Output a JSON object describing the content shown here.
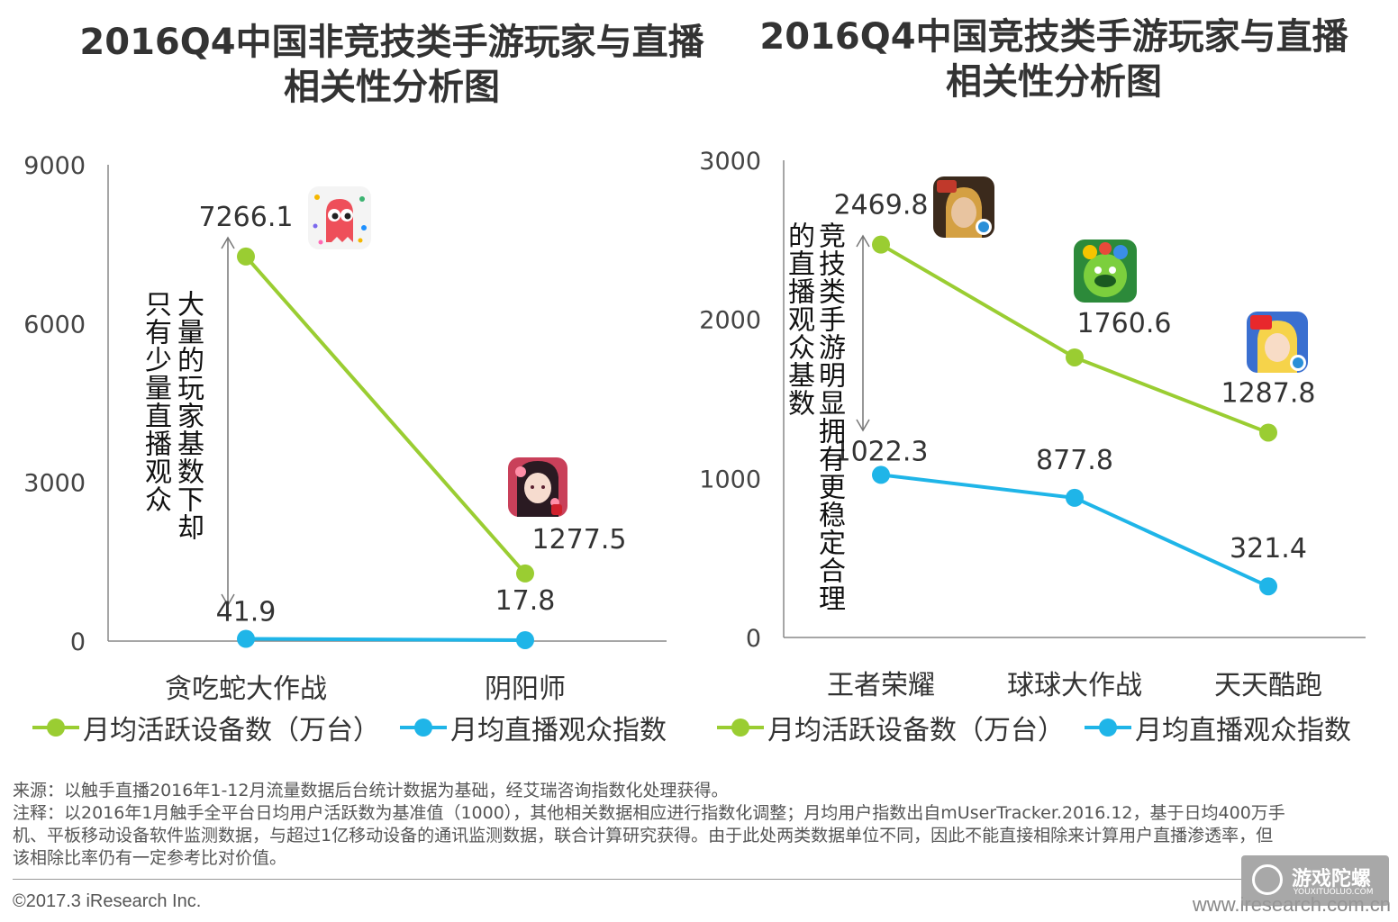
{
  "charts": [
    {
      "title_line1": "2016Q4中国非竞技类手游玩家与直播",
      "title_line2": "相关性分析图",
      "annotation_col1": "只有少量直播观众",
      "annotation_col2": "大量的玩家基数下却",
      "legend_active": "月均活跃设备数（万台）",
      "legend_viewers": "月均直播观众指数",
      "app_icons": [
        "snake-game-icon",
        "onmyoji-game-icon"
      ]
    },
    {
      "title_line1": "2016Q4中国竞技类手游玩家与直播",
      "title_line2": "相关性分析图",
      "annotation_col1": "的直播观众基数",
      "annotation_col2": "竞技类手游明显拥有更稳定合理",
      "legend_active": "月均活跃设备数（万台）",
      "legend_viewers": "月均直播观众指数",
      "app_icons": [
        "honor-of-kings-game-icon",
        "ball-battle-game-icon",
        "daily-parkour-game-icon"
      ]
    }
  ],
  "chart_data": [
    {
      "type": "line",
      "categories": [
        "贪吃蛇大作战",
        "阴阳师"
      ],
      "series": [
        {
          "name": "月均活跃设备数（万台）",
          "values": [
            7266.1,
            1277.5
          ],
          "labels": [
            "7266.1",
            "1277.5"
          ]
        },
        {
          "name": "月均直播观众指数",
          "values": [
            41.9,
            17.8
          ],
          "labels": [
            "41.9",
            "17.8"
          ]
        }
      ],
      "ylim": [
        0,
        9000
      ],
      "yticks": [
        "0",
        "3000",
        "6000",
        "9000"
      ],
      "colors": [
        "#9ACD32",
        "#1FB5E8"
      ]
    },
    {
      "type": "line",
      "categories": [
        "王者荣耀",
        "球球大作战",
        "天天酷跑"
      ],
      "series": [
        {
          "name": "月均活跃设备数（万台）",
          "values": [
            2469.8,
            1760.6,
            1287.8
          ],
          "labels": [
            "2469.8",
            "1760.6",
            "1287.8"
          ]
        },
        {
          "name": "月均直播观众指数",
          "values": [
            1022.3,
            877.8,
            321.4
          ],
          "labels": [
            "1022.3",
            "877.8",
            "321.4"
          ]
        }
      ],
      "ylim": [
        0,
        3000
      ],
      "yticks": [
        "0",
        "1000",
        "2000",
        "3000"
      ],
      "colors": [
        "#9ACD32",
        "#1FB5E8"
      ]
    }
  ],
  "notes": {
    "source": "来源：以触手直播2016年1-12月流量数据后台统计数据为基础，经艾瑞咨询指数化处理获得。",
    "note_line1": "注释：以2016年1月触手全平台日均用户活跃数为基准值（1000），其他相关数据相应进行指数化调整；月均用户指数出自mUserTracker.2016.12，基于日均400万手",
    "note_line2": "机、平板移动设备软件监测数据，与超过1亿移动设备的通讯监测数据，联合计算研究获得。由于此处两类数据单位不同，因此不能直接相除来计算用户直播渗透率，但",
    "note_line3": "该相除比率仍有一定参考比对价值。"
  },
  "footer": {
    "copyright": "©2017.3 iResearch Inc.",
    "website": "www.iresearch.com.cn",
    "watermark_text": "游戏陀螺",
    "watermark_sub": "YOUXITUOLUO.COM"
  }
}
